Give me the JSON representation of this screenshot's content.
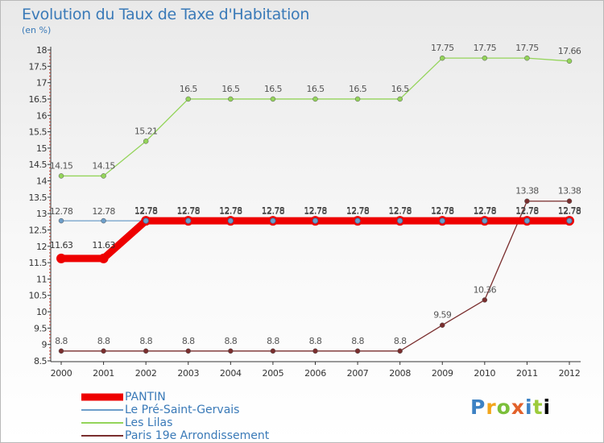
{
  "title": "Evolution du Taux de Taxe d'Habitation",
  "unit": "(en %)",
  "logo": "Proxiti",
  "chart_data": {
    "type": "line",
    "x": [
      "2000",
      "2001",
      "2002",
      "2003",
      "2004",
      "2005",
      "2006",
      "2007",
      "2008",
      "2009",
      "2010",
      "2011",
      "2012"
    ],
    "ylim": [
      8.5,
      18
    ],
    "yticks": [
      "8.5",
      "9",
      "9.5",
      "10",
      "10.5",
      "11",
      "11.5",
      "12",
      "12.5",
      "13",
      "13.5",
      "14",
      "14.5",
      "15",
      "15.5",
      "16",
      "16.5",
      "17",
      "17.5",
      "18"
    ],
    "grid": false,
    "legend_position": "bottom-left",
    "series": [
      {
        "name": "PANTIN",
        "color": "#ee0000",
        "values": [
          11.63,
          11.63,
          12.78,
          12.78,
          12.78,
          12.78,
          12.78,
          12.78,
          12.78,
          12.78,
          12.78,
          12.78,
          12.78
        ],
        "labels": [
          "11.63",
          "11.63",
          "12.78",
          "12.78",
          "12.78",
          "12.78",
          "12.78",
          "12.78",
          "12.78",
          "12.78",
          "12.78",
          "12.78",
          "12.78"
        ]
      },
      {
        "name": "Le Pré-Saint-Gervais",
        "color": "#6d9ec9",
        "values": [
          12.78,
          12.78,
          12.78,
          12.78,
          12.78,
          12.78,
          12.78,
          12.78,
          12.78,
          12.78,
          12.78,
          12.78,
          12.78
        ],
        "labels": [
          "12.78",
          "12.78",
          "12.78",
          "12.78",
          "12.78",
          "12.78",
          "12.78",
          "12.78",
          "12.78",
          "12.78",
          "12.78",
          "12.78",
          "12.78"
        ]
      },
      {
        "name": "Les Lilas",
        "color": "#94d45a",
        "values": [
          14.15,
          14.15,
          15.21,
          16.5,
          16.5,
          16.5,
          16.5,
          16.5,
          16.5,
          17.75,
          17.75,
          17.75,
          17.66
        ],
        "labels": [
          "14.15",
          "14.15",
          "15.21",
          "16.5",
          "16.5",
          "16.5",
          "16.5",
          "16.5",
          "16.5",
          "17.75",
          "17.75",
          "17.75",
          "17.66"
        ]
      },
      {
        "name": "Paris 19e  Arrondissement",
        "color": "#7a2e2e",
        "values": [
          8.8,
          8.8,
          8.8,
          8.8,
          8.8,
          8.8,
          8.8,
          8.8,
          8.8,
          9.59,
          10.36,
          13.38,
          13.38
        ],
        "labels": [
          "8.8",
          "8.8",
          "8.8",
          "8.8",
          "8.8",
          "8.8",
          "8.8",
          "8.8",
          "8.8",
          "9.59",
          "10.36",
          "13.38",
          "13.38"
        ]
      }
    ]
  }
}
